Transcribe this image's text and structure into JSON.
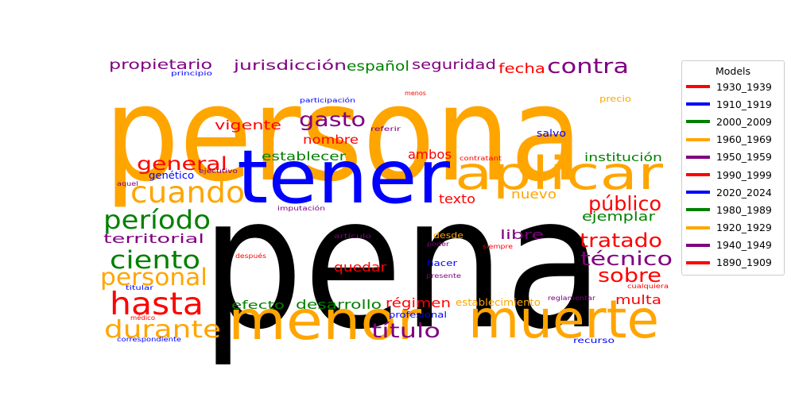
{
  "chart_data": {
    "type": "wordcloud",
    "legend": {
      "title": "Models",
      "placement": "right",
      "entries": [
        {
          "label": "1930_1939",
          "color": "#ff0000"
        },
        {
          "label": "1910_1919",
          "color": "#0000ff"
        },
        {
          "label": "2000_2009",
          "color": "#008000"
        },
        {
          "label": "1960_1969",
          "color": "#ffa500"
        },
        {
          "label": "1950_1959",
          "color": "#800080"
        },
        {
          "label": "1990_1999",
          "color": "#ff0000"
        },
        {
          "label": "2020_2024",
          "color": "#0000ff"
        },
        {
          "label": "1980_1989",
          "color": "#008000"
        },
        {
          "label": "1920_1929",
          "color": "#ffa500"
        },
        {
          "label": "1940_1949",
          "color": "#800080"
        },
        {
          "label": "1890_1909",
          "color": "#ff0000"
        }
      ]
    },
    "words": [
      {
        "text": "persona",
        "color": "#ffa500"
      },
      {
        "text": "pena",
        "color": "#000000"
      },
      {
        "text": "tener",
        "color": "#0000ff"
      },
      {
        "text": "aplicar",
        "color": "#ffa500"
      },
      {
        "text": "menor",
        "color": "#ffa500"
      },
      {
        "text": "muerte",
        "color": "#ffa500"
      },
      {
        "text": "cuando",
        "color": "#ffa500"
      },
      {
        "text": "hasta",
        "color": "#ff0000"
      },
      {
        "text": "período",
        "color": "#008000"
      },
      {
        "text": "ciento",
        "color": "#008000"
      },
      {
        "text": "durante",
        "color": "#ffa500"
      },
      {
        "text": "personal",
        "color": "#ffa500"
      },
      {
        "text": "contra",
        "color": "#800080"
      },
      {
        "text": "público",
        "color": "#ff0000"
      },
      {
        "text": "tratado",
        "color": "#ff0000"
      },
      {
        "text": "técnico",
        "color": "#800080"
      },
      {
        "text": "sobre",
        "color": "#ff0000"
      },
      {
        "text": "título",
        "color": "#800080"
      },
      {
        "text": "gasto",
        "color": "#800080"
      },
      {
        "text": "general",
        "color": "#ff0000"
      },
      {
        "text": "propietario",
        "color": "#800080"
      },
      {
        "text": "jurisdicción",
        "color": "#800080"
      },
      {
        "text": "español",
        "color": "#008000"
      },
      {
        "text": "seguridad",
        "color": "#800080"
      },
      {
        "text": "fecha",
        "color": "#ff0000"
      },
      {
        "text": "vigente",
        "color": "#ff0000"
      },
      {
        "text": "nombre",
        "color": "#ff0000"
      },
      {
        "text": "establecer",
        "color": "#008000"
      },
      {
        "text": "ambos",
        "color": "#ff0000"
      },
      {
        "text": "institución",
        "color": "#008000"
      },
      {
        "text": "texto",
        "color": "#ff0000"
      },
      {
        "text": "nuevo",
        "color": "#ffa500"
      },
      {
        "text": "ejemplar",
        "color": "#008000"
      },
      {
        "text": "territorial",
        "color": "#800080"
      },
      {
        "text": "libre",
        "color": "#800080"
      },
      {
        "text": "quedar",
        "color": "#ff0000"
      },
      {
        "text": "multa",
        "color": "#ff0000"
      },
      {
        "text": "efecto",
        "color": "#008000"
      },
      {
        "text": "desarrollo",
        "color": "#008000"
      },
      {
        "text": "régimen",
        "color": "#ff0000"
      },
      {
        "text": "establecimiento",
        "color": "#ffa500"
      },
      {
        "text": "genético",
        "color": "#0000ff"
      },
      {
        "text": "salvo",
        "color": "#0000ff"
      },
      {
        "text": "precio",
        "color": "#ffa500"
      },
      {
        "text": "desde",
        "color": "#ffa500"
      },
      {
        "text": "hacer",
        "color": "#0000ff"
      },
      {
        "text": "profesional",
        "color": "#0000ff"
      },
      {
        "text": "recurso",
        "color": "#0000ff"
      },
      {
        "text": "principio",
        "color": "#0000ff"
      },
      {
        "text": "participación",
        "color": "#0000ff"
      },
      {
        "text": "menos",
        "color": "#ff0000"
      },
      {
        "text": "referir",
        "color": "#800080"
      },
      {
        "text": "contratant",
        "color": "#ff0000"
      },
      {
        "text": "ejecutivo",
        "color": "#800080"
      },
      {
        "text": "aquel",
        "color": "#800080"
      },
      {
        "text": "imputación",
        "color": "#800080"
      },
      {
        "text": "artículo",
        "color": "#800080"
      },
      {
        "text": "poder",
        "color": "#800080"
      },
      {
        "text": "siempre",
        "color": "#ff0000"
      },
      {
        "text": "después",
        "color": "#ff0000"
      },
      {
        "text": "titular",
        "color": "#0000ff"
      },
      {
        "text": "presente",
        "color": "#800080"
      },
      {
        "text": "cualquiera",
        "color": "#ff0000"
      },
      {
        "text": "reglamentar",
        "color": "#800080"
      },
      {
        "text": "médico",
        "color": "#ff0000"
      },
      {
        "text": "correspondiente",
        "color": "#0000ff"
      }
    ]
  }
}
